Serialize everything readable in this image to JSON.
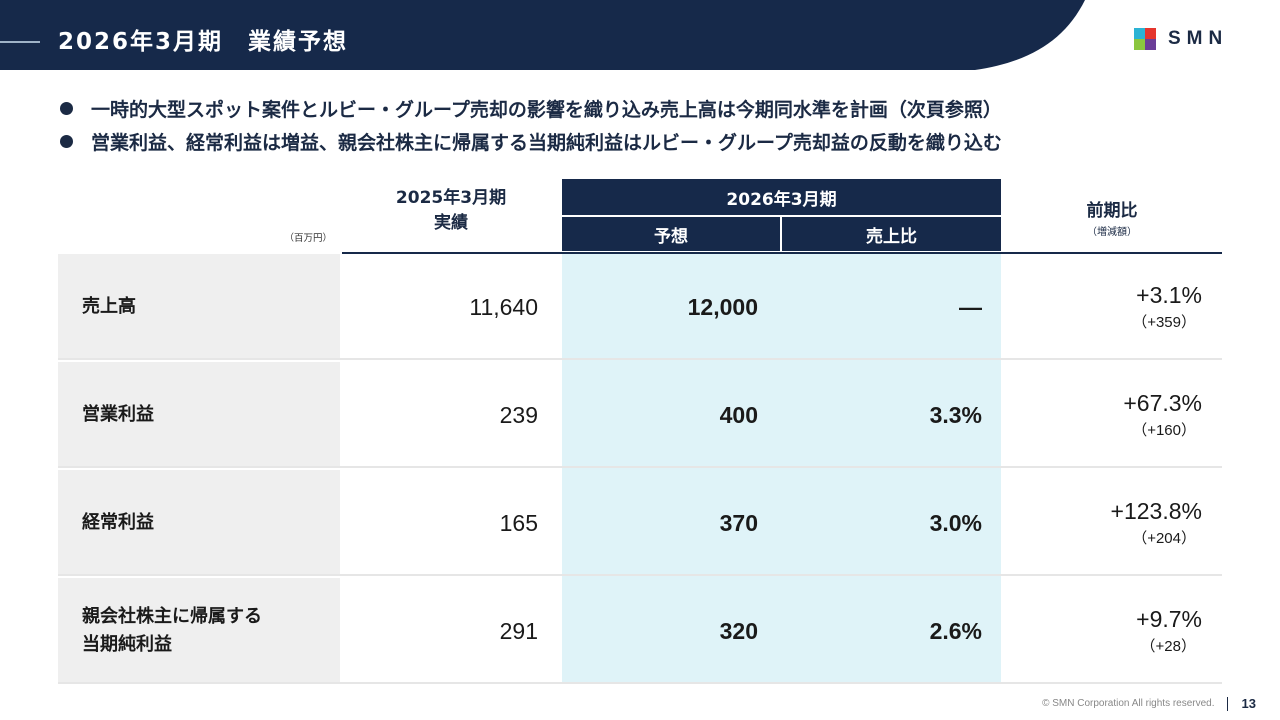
{
  "header": {
    "title": "2026年3月期　業績予想",
    "logo_text": "SMN",
    "colors": {
      "navy": "#16294a",
      "highlight": "#dff3f8"
    }
  },
  "bullets": [
    "一時的大型スポット案件とルビー・グループ売却の影響を織り込み売上高は今期同水準を計画（次頁参照）",
    "営業利益、経常利益は増益、親会社株主に帰属する当期純利益はルビー・グループ売却益の反動を織り込む"
  ],
  "table": {
    "unit": "（百万円）",
    "col_prev_line1": "2025年3月期",
    "col_prev_line2": "実績",
    "col_group": "2026年3月期",
    "col_forecast": "予想",
    "col_ratio": "売上比",
    "col_yoy": "前期比",
    "col_yoy_sub": "（増減額）",
    "rows": [
      {
        "label": "売上高",
        "prev": "11,640",
        "forecast": "12,000",
        "ratio": "—",
        "yoy_pct": "+3.1%",
        "yoy_amt": "（+359）"
      },
      {
        "label": "営業利益",
        "prev": "239",
        "forecast": "400",
        "ratio": "3.3%",
        "yoy_pct": "+67.3%",
        "yoy_amt": "（+160）"
      },
      {
        "label": "経常利益",
        "prev": "165",
        "forecast": "370",
        "ratio": "3.0%",
        "yoy_pct": "+123.8%",
        "yoy_amt": "（+204）"
      },
      {
        "label": "親会社株主に帰属する\n当期純利益",
        "prev": "291",
        "forecast": "320",
        "ratio": "2.6%",
        "yoy_pct": "+9.7%",
        "yoy_amt": "（+28）"
      }
    ]
  },
  "footer": {
    "copyright": "© SMN Corporation All rights reserved.",
    "page_number": "13"
  }
}
